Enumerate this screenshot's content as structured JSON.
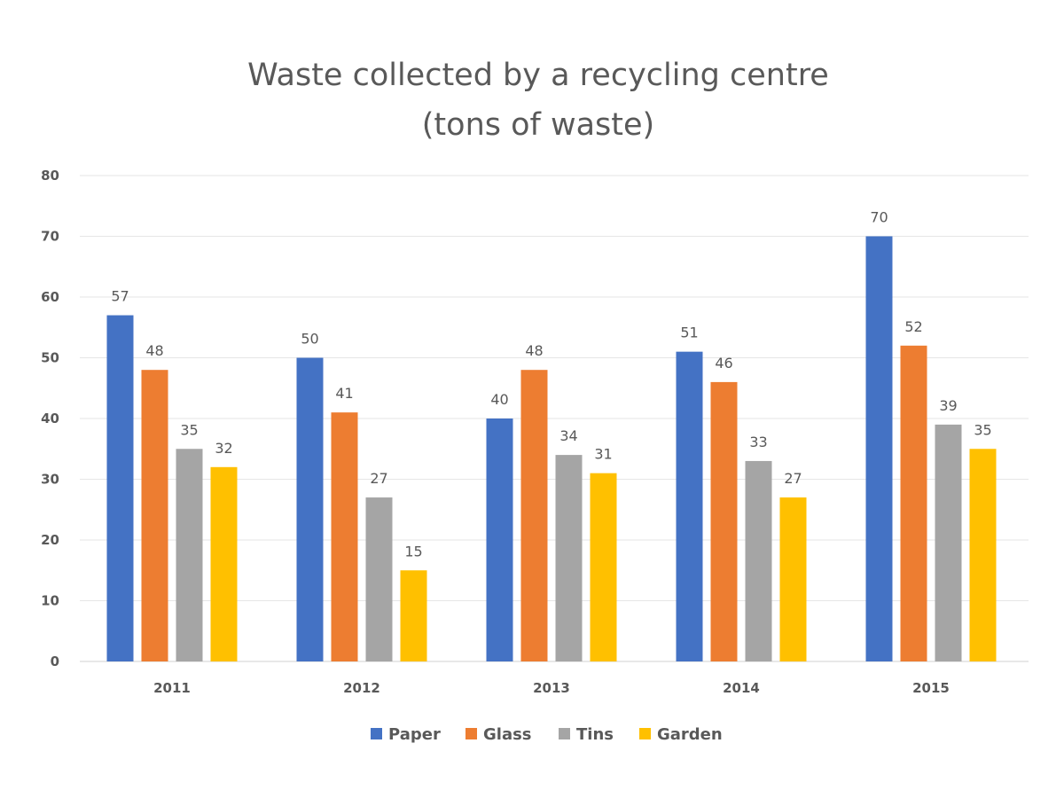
{
  "chart_data": {
    "type": "bar",
    "title": "Waste collected by a recycling centre",
    "subtitle": "(tons of waste)",
    "xlabel": "",
    "ylabel": "",
    "categories": [
      "2011",
      "2012",
      "2013",
      "2014",
      "2015"
    ],
    "series": [
      {
        "name": "Paper",
        "color": "#4472C4",
        "values": [
          57,
          50,
          40,
          51,
          70
        ]
      },
      {
        "name": "Glass",
        "color": "#ED7D31",
        "values": [
          48,
          41,
          48,
          46,
          52
        ]
      },
      {
        "name": "Tins",
        "color": "#A5A5A5",
        "values": [
          35,
          27,
          34,
          33,
          39
        ]
      },
      {
        "name": "Garden",
        "color": "#FFC000",
        "values": [
          32,
          15,
          31,
          27,
          35
        ]
      }
    ],
    "ylim": [
      0,
      80
    ],
    "yticks": [
      "0",
      "10",
      "20",
      "30",
      "40",
      "50",
      "60",
      "70",
      "80"
    ],
    "grid": true,
    "legend_position": "bottom"
  }
}
